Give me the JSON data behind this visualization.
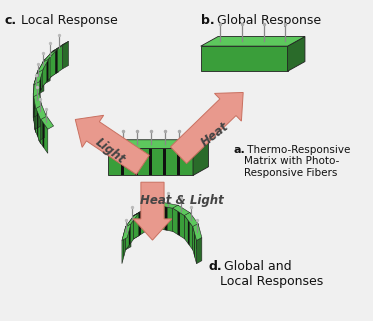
{
  "bg_color": "#f0f0f0",
  "arrow_color": "#e8998d",
  "arrow_edge_color": "#c97060",
  "green_dark": "#2a6b2a",
  "green_mid": "#3a9e3a",
  "green_light": "#5dc85d",
  "black_stripe": "#111111",
  "pin_color": "#888888",
  "label_c": "c.",
  "label_c_rest": " Local Response",
  "label_b": "b.",
  "label_b_rest": " Global Response",
  "label_a": "a.",
  "label_a_rest": " Thermo-Responsive\nMatrix with Photo-\nResponsive Fibers",
  "label_d": "d.",
  "label_d_rest": " Global and\nLocal Responses",
  "text_light": "Light",
  "text_heat": "Heat",
  "text_heat_light": "Heat & Light"
}
